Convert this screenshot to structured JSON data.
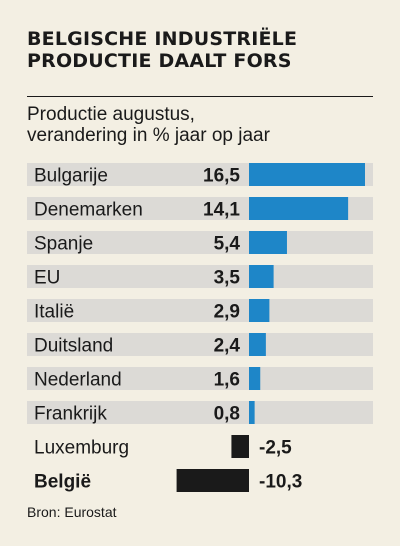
{
  "title_line1": "BELGISCHE INDUSTRIËLE",
  "title_line2": "PRODUCTIE DAALT FORS",
  "subtitle_line1": "Productie augustus,",
  "subtitle_line2": "verandering in % jaar op jaar",
  "source": "Bron: Eurostat",
  "colors": {
    "positive": "#1e86c8",
    "negative": "#1a1a1a",
    "row_background": "#dcdad6",
    "page_background": "#f3efe3"
  },
  "chart_data": {
    "type": "bar",
    "orientation": "horizontal",
    "title": "BELGISCHE INDUSTRIËLE PRODUCTIE DAALT FORS",
    "subtitle": "Productie augustus, verandering in % jaar op jaar",
    "categories": [
      "Bulgarije",
      "Denemarken",
      "Spanje",
      "EU",
      "Italië",
      "Duitsland",
      "Nederland",
      "Frankrijk",
      "Luxemburg",
      "België"
    ],
    "values": [
      16.5,
      14.1,
      5.4,
      3.5,
      2.9,
      2.4,
      1.6,
      0.8,
      -2.5,
      -10.3
    ],
    "value_labels": [
      "16,5",
      "14,1",
      "5,4",
      "3,5",
      "2,9",
      "2,4",
      "1,6",
      "0,8",
      "-2,5",
      "-10,3"
    ],
    "highlighted": [
      "België"
    ],
    "xlim": [
      -10.3,
      17.5
    ],
    "grid": false,
    "legend": "none"
  }
}
